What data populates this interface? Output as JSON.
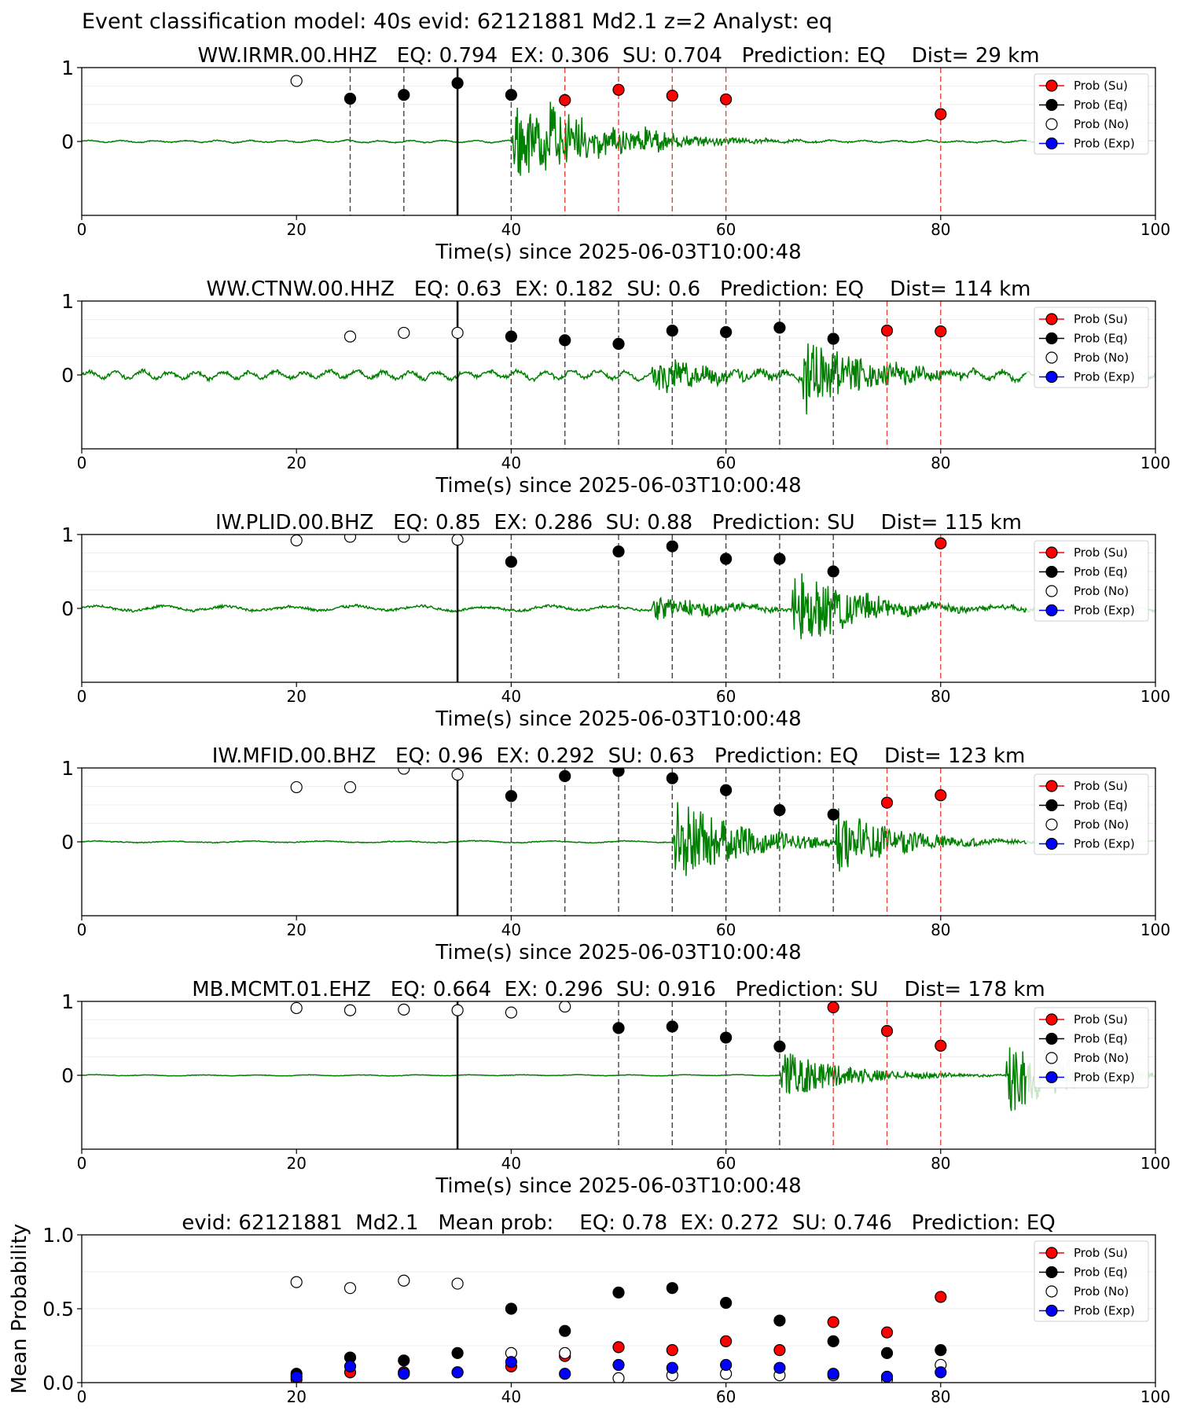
{
  "figure": {
    "suptitle": "Event classification model: 40s evid: 62121881 Md2.1 z=2 Analyst: eq"
  },
  "legend_labels": [
    "Prob (Su)",
    "Prob (Eq)",
    "Prob (No)",
    "Prob (Exp)"
  ],
  "colors": {
    "su": "#ff0000",
    "eq": "#000000",
    "no": "#ffffff",
    "exp": "#0000ff",
    "trace": "#008000",
    "trace_faded": "#c8e6c8"
  },
  "xlabel": "Time(s) since 2025-06-03T10:00:48",
  "chart_data": [
    {
      "type": "scatter",
      "title": "WW.IRMR.00.HHZ   EQ: 0.794  EX: 0.306  SU: 0.704   Prediction: EQ    Dist= 29 km",
      "xlabel": "Time(s) since 2025-06-03T10:00:48",
      "xlim": [
        0,
        100
      ],
      "ylim": [
        -1,
        1
      ],
      "xticks": [
        0,
        20,
        40,
        60,
        80,
        100
      ],
      "yticks": [
        0,
        1
      ],
      "legend": "top-right",
      "reference_line": 35,
      "waveform": {
        "onsets": [
          40,
          43,
          52
        ],
        "amps": [
          0.55,
          0.4,
          0.12
        ],
        "noise": 0.012,
        "period": 3
      },
      "points": [
        {
          "x": 20,
          "y": 0.82,
          "cls": "no"
        },
        {
          "x": 25,
          "y": 0.58,
          "cls": "eq"
        },
        {
          "x": 30,
          "y": 0.63,
          "cls": "eq"
        },
        {
          "x": 35,
          "y": 0.79,
          "cls": "eq"
        },
        {
          "x": 40,
          "y": 0.63,
          "cls": "eq"
        },
        {
          "x": 45,
          "y": 0.56,
          "cls": "su"
        },
        {
          "x": 50,
          "y": 0.7,
          "cls": "su"
        },
        {
          "x": 55,
          "y": 0.62,
          "cls": "su"
        },
        {
          "x": 60,
          "y": 0.57,
          "cls": "su"
        },
        {
          "x": 80,
          "y": 0.37,
          "cls": "su"
        }
      ]
    },
    {
      "type": "scatter",
      "title": "WW.CTNW.00.HHZ   EQ: 0.63  EX: 0.182  SU: 0.6   Prediction: EQ    Dist= 114 km",
      "xlabel": "Time(s) since 2025-06-03T10:00:48",
      "xlim": [
        0,
        100
      ],
      "ylim": [
        -1,
        1
      ],
      "xticks": [
        0,
        20,
        40,
        60,
        80,
        100
      ],
      "yticks": [
        0,
        1
      ],
      "legend": "top-right",
      "reference_line": 35,
      "waveform": {
        "onsets": [
          53,
          67
        ],
        "amps": [
          0.25,
          0.55
        ],
        "noise": 0.045,
        "period": 2.5
      },
      "points": [
        {
          "x": 25,
          "y": 0.52,
          "cls": "no"
        },
        {
          "x": 30,
          "y": 0.57,
          "cls": "no"
        },
        {
          "x": 35,
          "y": 0.57,
          "cls": "no"
        },
        {
          "x": 40,
          "y": 0.52,
          "cls": "eq"
        },
        {
          "x": 45,
          "y": 0.47,
          "cls": "eq"
        },
        {
          "x": 50,
          "y": 0.42,
          "cls": "eq"
        },
        {
          "x": 55,
          "y": 0.6,
          "cls": "eq"
        },
        {
          "x": 60,
          "y": 0.58,
          "cls": "eq"
        },
        {
          "x": 65,
          "y": 0.64,
          "cls": "eq"
        },
        {
          "x": 70,
          "y": 0.49,
          "cls": "eq"
        },
        {
          "x": 75,
          "y": 0.6,
          "cls": "su"
        },
        {
          "x": 80,
          "y": 0.59,
          "cls": "su"
        }
      ]
    },
    {
      "type": "scatter",
      "title": "IW.PLID.00.BHZ   EQ: 0.85  EX: 0.286  SU: 0.88   Prediction: SU    Dist= 115 km",
      "xlabel": "Time(s) since 2025-06-03T10:00:48",
      "xlim": [
        0,
        100
      ],
      "ylim": [
        -1,
        1
      ],
      "xticks": [
        0,
        20,
        40,
        60,
        80,
        100
      ],
      "yticks": [
        0,
        1
      ],
      "legend": "top-right",
      "reference_line": 35,
      "waveform": {
        "onsets": [
          53,
          66
        ],
        "amps": [
          0.18,
          0.6
        ],
        "noise": 0.03,
        "period": 6
      },
      "points": [
        {
          "x": 20,
          "y": 0.92,
          "cls": "no"
        },
        {
          "x": 25,
          "y": 0.97,
          "cls": "no"
        },
        {
          "x": 30,
          "y": 0.97,
          "cls": "no"
        },
        {
          "x": 35,
          "y": 0.93,
          "cls": "no"
        },
        {
          "x": 40,
          "y": 0.63,
          "cls": "eq"
        },
        {
          "x": 50,
          "y": 0.77,
          "cls": "eq"
        },
        {
          "x": 55,
          "y": 0.84,
          "cls": "eq"
        },
        {
          "x": 60,
          "y": 0.67,
          "cls": "eq"
        },
        {
          "x": 65,
          "y": 0.67,
          "cls": "eq"
        },
        {
          "x": 70,
          "y": 0.5,
          "cls": "eq"
        },
        {
          "x": 80,
          "y": 0.88,
          "cls": "su"
        }
      ]
    },
    {
      "type": "scatter",
      "title": "IW.MFID.00.BHZ   EQ: 0.96  EX: 0.292  SU: 0.63   Prediction: EQ    Dist= 123 km",
      "xlabel": "Time(s) since 2025-06-03T10:00:48",
      "xlim": [
        0,
        100
      ],
      "ylim": [
        -1,
        1
      ],
      "xticks": [
        0,
        20,
        40,
        60,
        80,
        100
      ],
      "yticks": [
        0,
        1
      ],
      "legend": "top-right",
      "reference_line": 35,
      "waveform": {
        "onsets": [
          55,
          70
        ],
        "amps": [
          0.65,
          0.45
        ],
        "noise": 0.01,
        "period": 7
      },
      "points": [
        {
          "x": 20,
          "y": 0.74,
          "cls": "no"
        },
        {
          "x": 25,
          "y": 0.74,
          "cls": "no"
        },
        {
          "x": 30,
          "y": 0.99,
          "cls": "no"
        },
        {
          "x": 35,
          "y": 0.91,
          "cls": "no"
        },
        {
          "x": 40,
          "y": 0.62,
          "cls": "eq"
        },
        {
          "x": 45,
          "y": 0.89,
          "cls": "eq"
        },
        {
          "x": 50,
          "y": 0.96,
          "cls": "eq"
        },
        {
          "x": 55,
          "y": 0.86,
          "cls": "eq"
        },
        {
          "x": 60,
          "y": 0.7,
          "cls": "eq"
        },
        {
          "x": 65,
          "y": 0.43,
          "cls": "eq"
        },
        {
          "x": 70,
          "y": 0.37,
          "cls": "eq"
        },
        {
          "x": 75,
          "y": 0.53,
          "cls": "su"
        },
        {
          "x": 80,
          "y": 0.63,
          "cls": "su"
        }
      ]
    },
    {
      "type": "scatter",
      "title": "MB.MCMT.01.EHZ   EQ: 0.664  EX: 0.296  SU: 0.916   Prediction: SU    Dist= 178 km",
      "xlabel": "Time(s) since 2025-06-03T10:00:48",
      "xlim": [
        0,
        100
      ],
      "ylim": [
        -1,
        1
      ],
      "xticks": [
        0,
        20,
        40,
        60,
        80,
        100
      ],
      "yticks": [
        0,
        1
      ],
      "legend": "top-right",
      "reference_line": 35,
      "waveform": {
        "onsets": [
          65,
          86
        ],
        "amps": [
          0.35,
          0.55
        ],
        "noise": 0.006,
        "period": 5
      },
      "points": [
        {
          "x": 20,
          "y": 0.91,
          "cls": "no"
        },
        {
          "x": 25,
          "y": 0.88,
          "cls": "no"
        },
        {
          "x": 30,
          "y": 0.89,
          "cls": "no"
        },
        {
          "x": 35,
          "y": 0.88,
          "cls": "no"
        },
        {
          "x": 40,
          "y": 0.85,
          "cls": "no"
        },
        {
          "x": 45,
          "y": 0.93,
          "cls": "no"
        },
        {
          "x": 50,
          "y": 0.64,
          "cls": "eq"
        },
        {
          "x": 55,
          "y": 0.66,
          "cls": "eq"
        },
        {
          "x": 60,
          "y": 0.51,
          "cls": "eq"
        },
        {
          "x": 65,
          "y": 0.39,
          "cls": "eq"
        },
        {
          "x": 70,
          "y": 0.92,
          "cls": "su"
        },
        {
          "x": 75,
          "y": 0.6,
          "cls": "su"
        },
        {
          "x": 80,
          "y": 0.4,
          "cls": "su"
        }
      ]
    },
    {
      "type": "scatter",
      "title": "evid: 62121881  Md2.1   Mean prob:    EQ: 0.78  EX: 0.272  SU: 0.746   Prediction: EQ",
      "xlabel": "",
      "ylabel": "Mean Probability",
      "xlim": [
        0,
        100
      ],
      "ylim": [
        0,
        1
      ],
      "xticks": [
        0,
        20,
        40,
        60,
        80,
        100
      ],
      "yticks": [
        0.0,
        0.5,
        1.0
      ],
      "legend": "top-right",
      "series": [
        {
          "name": "Prob (Su)",
          "cls": "su",
          "x": [
            20,
            25,
            30,
            35,
            40,
            45,
            50,
            55,
            60,
            65,
            70,
            75,
            80
          ],
          "y": [
            0.02,
            0.07,
            0.07,
            0.07,
            0.11,
            0.18,
            0.24,
            0.22,
            0.28,
            0.22,
            0.41,
            0.34,
            0.58
          ]
        },
        {
          "name": "Prob (Eq)",
          "cls": "eq",
          "x": [
            20,
            25,
            30,
            35,
            40,
            45,
            50,
            55,
            60,
            65,
            70,
            75,
            80
          ],
          "y": [
            0.06,
            0.17,
            0.15,
            0.2,
            0.5,
            0.35,
            0.61,
            0.64,
            0.54,
            0.42,
            0.28,
            0.2,
            0.22
          ]
        },
        {
          "name": "Prob (No)",
          "cls": "no",
          "x": [
            20,
            25,
            30,
            35,
            40,
            45,
            50,
            55,
            60,
            65,
            70,
            75,
            80
          ],
          "y": [
            0.68,
            0.64,
            0.69,
            0.67,
            0.2,
            0.2,
            0.03,
            0.05,
            0.06,
            0.05,
            0.05,
            0.02,
            0.12
          ]
        },
        {
          "name": "Prob (Exp)",
          "cls": "exp",
          "x": [
            20,
            25,
            30,
            35,
            40,
            45,
            50,
            55,
            60,
            65,
            70,
            75,
            80
          ],
          "y": [
            0.04,
            0.11,
            0.06,
            0.07,
            0.14,
            0.06,
            0.12,
            0.1,
            0.12,
            0.1,
            0.06,
            0.04,
            0.07
          ]
        }
      ]
    }
  ]
}
